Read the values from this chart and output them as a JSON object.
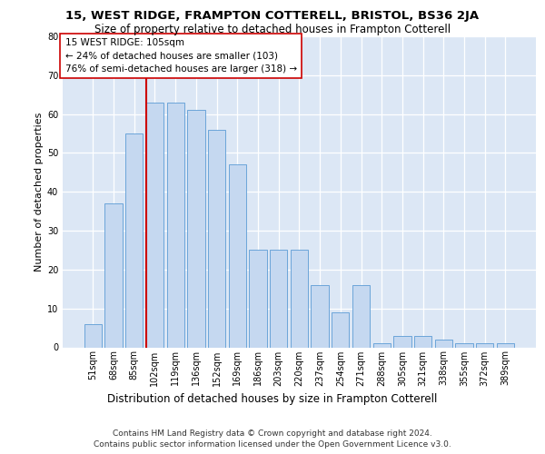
{
  "title": "15, WEST RIDGE, FRAMPTON COTTERELL, BRISTOL, BS36 2JA",
  "subtitle": "Size of property relative to detached houses in Frampton Cotterell",
  "xlabel": "Distribution of detached houses by size in Frampton Cotterell",
  "ylabel": "Number of detached properties",
  "categories": [
    "51sqm",
    "68sqm",
    "85sqm",
    "102sqm",
    "119sqm",
    "136sqm",
    "152sqm",
    "169sqm",
    "186sqm",
    "203sqm",
    "220sqm",
    "237sqm",
    "254sqm",
    "271sqm",
    "288sqm",
    "305sqm",
    "321sqm",
    "338sqm",
    "355sqm",
    "372sqm",
    "389sqm"
  ],
  "values": [
    6,
    37,
    55,
    63,
    63,
    61,
    56,
    47,
    25,
    25,
    25,
    16,
    9,
    16,
    1,
    3,
    3,
    2,
    1,
    1,
    1
  ],
  "bar_color": "#c5d8f0",
  "bar_edge_color": "#5b9bd5",
  "annotation_line1": "15 WEST RIDGE: 105sqm",
  "annotation_line2": "← 24% of detached houses are smaller (103)",
  "annotation_line3": "76% of semi-detached houses are larger (318) →",
  "vline_color": "#cc0000",
  "ylim": [
    0,
    80
  ],
  "yticks": [
    0,
    10,
    20,
    30,
    40,
    50,
    60,
    70,
    80
  ],
  "grid_color": "#ffffff",
  "background_color": "#dce7f5",
  "footer_line1": "Contains HM Land Registry data © Crown copyright and database right 2024.",
  "footer_line2": "Contains public sector information licensed under the Open Government Licence v3.0.",
  "title_fontsize": 9.5,
  "subtitle_fontsize": 8.5,
  "ylabel_fontsize": 8,
  "xlabel_fontsize": 8.5,
  "tick_fontsize": 7,
  "annotation_fontsize": 7.5,
  "footer_fontsize": 6.5
}
